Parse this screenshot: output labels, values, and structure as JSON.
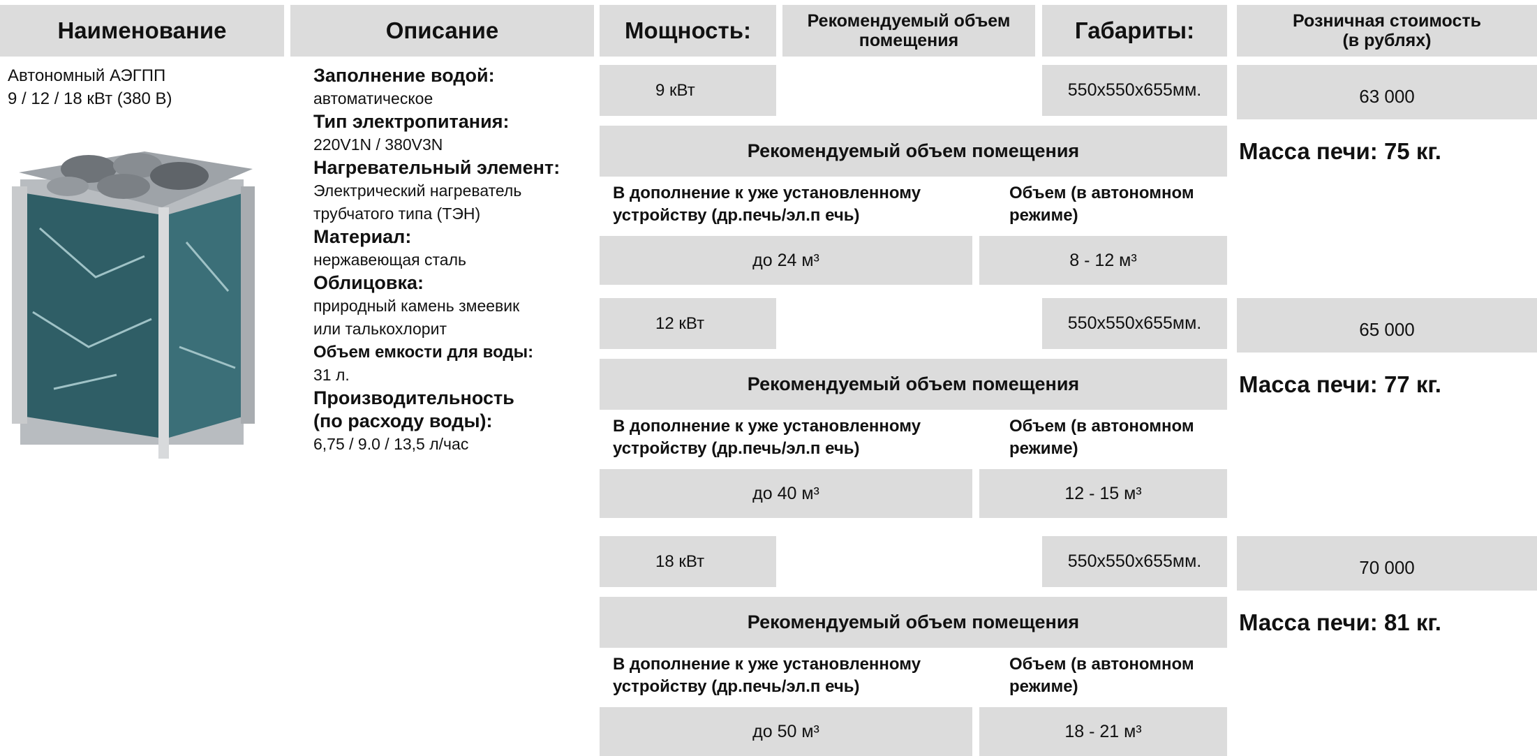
{
  "header": [
    [
      "Наименование"
    ],
    [
      "Описание"
    ],
    [
      "Мощность:"
    ],
    [
      "Рекомендуемый объем",
      "помещения"
    ],
    [
      "Габариты:"
    ],
    [
      "Розничная стоимость",
      "(в рублях)"
    ]
  ],
  "product": {
    "name": [
      "Автономный АЭГПП",
      "9 / 12 /  18 кВт (380 В)"
    ]
  },
  "description": [
    {
      "label": [
        "Заполнение водой:"
      ],
      "value": [
        "автоматическое"
      ]
    },
    {
      "label": [
        "Тип электропитания:"
      ],
      "value": [
        "220V1N / 380V3N"
      ]
    },
    {
      "label": [
        "Нагревательный элемент:"
      ],
      "value": [
        "Электрический нагреватель",
        "трубчатого типа (ТЭН)"
      ]
    },
    {
      "label": [
        "Материал:"
      ],
      "value": [
        "нержавеющая сталь"
      ]
    },
    {
      "label": [
        "Облицовка:"
      ],
      "value": [
        "природный камень змеевик",
        "или талькохлорит"
      ]
    },
    {
      "label": [
        "Объем емкости для воды:"
      ],
      "value": [
        "31 л."
      ]
    },
    {
      "label": [
        "Производительность",
        "(по расходу воды):"
      ],
      "value": [
        "6,75 / 9.0  / 13,5 л/час"
      ]
    }
  ],
  "variants": [
    {
      "power": "9 кВт",
      "dimensions": "550х550х655мм.",
      "price": "63 000",
      "section_title": "Рекомендуемый объем помещения",
      "mass": "Масса печи: 75 кг.",
      "col1_header": [
        "В дополнение к уже установленному",
        "устройству (др.печь/эл.п ечь)"
      ],
      "col2_header": [
        "Объем (в автономном",
        "режиме)"
      ],
      "volume_addon": "до 24 м³",
      "volume_standalone": "8 - 12 м³"
    },
    {
      "power": "12 кВт",
      "dimensions": "550х550х655мм.",
      "price": "65 000",
      "section_title": "Рекомендуемый объем помещения",
      "mass": "Масса печи: 77 кг.",
      "col1_header": [
        "В дополнение к уже установленному",
        "устройству (др.печь/эл.п ечь)"
      ],
      "col2_header": [
        "Объем (в автономном",
        "режиме)"
      ],
      "volume_addon": "до 40 м³",
      "volume_standalone": "12 - 15 м³"
    },
    {
      "power": "18 кВт",
      "dimensions": "550х550х655мм.",
      "price": "70 000",
      "section_title": "Рекомендуемый объем помещения",
      "mass": "Масса печи: 81 кг.",
      "col1_header": [
        "В дополнение к уже установленному",
        "устройству (др.печь/эл.п ечь)"
      ],
      "col2_header": [
        "Объем (в автономном",
        "режиме)"
      ],
      "volume_addon": "до 50 м³",
      "volume_standalone": "18 - 21 м³"
    }
  ]
}
